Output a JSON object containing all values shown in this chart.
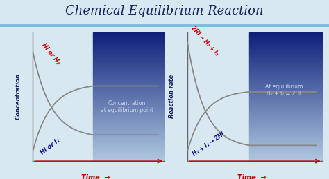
{
  "title": "Chemical Equilibrium Reaction",
  "title_color": "#1a2060",
  "title_size": 13,
  "bg_color": "#d8e8f0",
  "header_line_color": "#7abfda",
  "left_plot": {
    "ylabel": "Concentration",
    "xlabel": "Time",
    "curve1_label": "HI or H₂",
    "curve2_label": "HI or I₂",
    "curve_color": "#888888",
    "label1_color": "#cc0000",
    "label2_color": "#00008b",
    "box_text": "Concentration\nat equilibrium point",
    "box_text_color": "#c8d8e8"
  },
  "right_plot": {
    "ylabel": "Reaction rate",
    "xlabel": "Time",
    "curve1_label": "2HI → H₂ + I₂",
    "curve2_label": "H₂ + I₂ → 2HI",
    "curve_color": "#888888",
    "label1_color": "#cc0000",
    "label2_color": "#00008b",
    "box_text": "At equilibrium\nH₂ + I₂ ⇌ 2HI",
    "box_text_color": "#c8d8e8"
  },
  "label_color_red": "#cc0000",
  "label_color_blue": "#1a2060",
  "box_color_top": "#0d1f7a",
  "box_color_bottom": "#b0c8e0"
}
